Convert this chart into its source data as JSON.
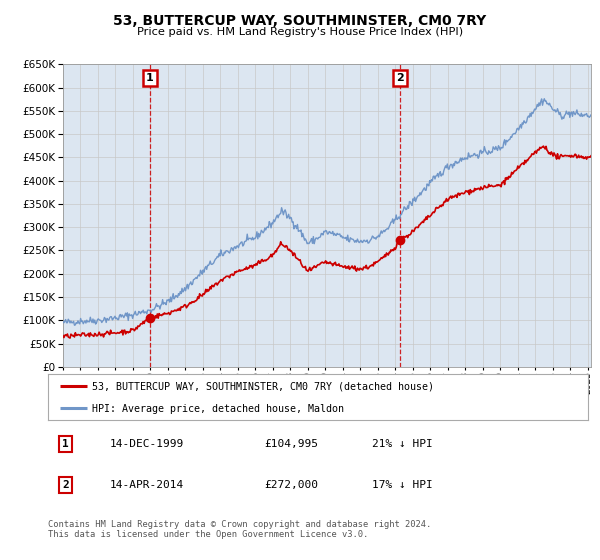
{
  "title": "53, BUTTERCUP WAY, SOUTHMINSTER, CM0 7RY",
  "subtitle": "Price paid vs. HM Land Registry's House Price Index (HPI)",
  "ylim": [
    0,
    650000
  ],
  "yticks": [
    0,
    50000,
    100000,
    150000,
    200000,
    250000,
    300000,
    350000,
    400000,
    450000,
    500000,
    550000,
    600000,
    650000
  ],
  "xmin": 1995.0,
  "xmax": 2025.2,
  "sale1_x": 1999.96,
  "sale1_y": 104995,
  "sale2_x": 2014.29,
  "sale2_y": 272000,
  "sale1_date": "14-DEC-1999",
  "sale1_price": "£104,995",
  "sale1_hpi": "21% ↓ HPI",
  "sale2_date": "14-APR-2014",
  "sale2_price": "£272,000",
  "sale2_hpi": "17% ↓ HPI",
  "red_line_label": "53, BUTTERCUP WAY, SOUTHMINSTER, CM0 7RY (detached house)",
  "blue_line_label": "HPI: Average price, detached house, Maldon",
  "footer": "Contains HM Land Registry data © Crown copyright and database right 2024.\nThis data is licensed under the Open Government Licence v3.0.",
  "bg_color": "#dce6f1",
  "red_color": "#cc0000",
  "blue_color": "#7096c8",
  "marker_box_color": "#cc0000"
}
